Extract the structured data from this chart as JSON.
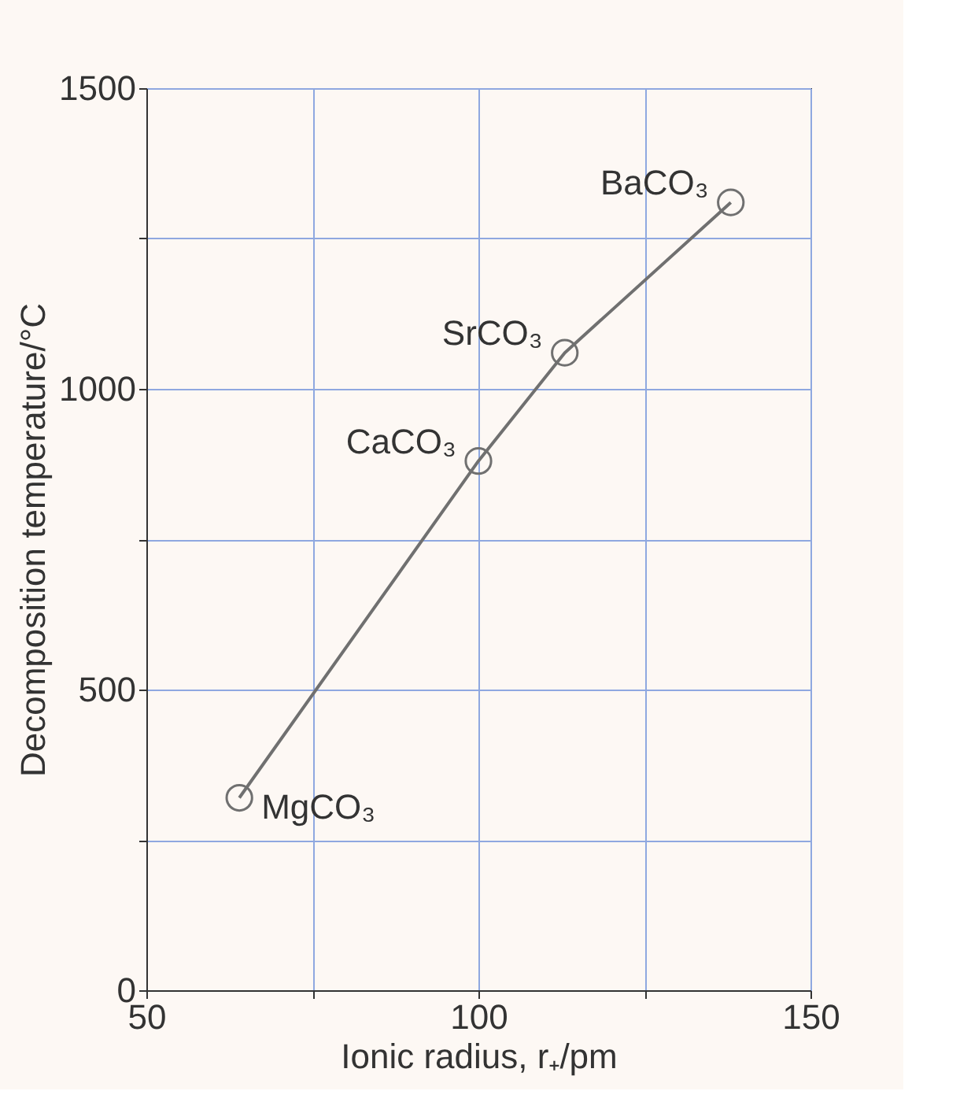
{
  "chart_data": {
    "type": "line",
    "xlabel": "Ionic radius, r₊/pm",
    "ylabel": "Decomposition temperature/°C",
    "x": [
      64,
      100,
      113,
      138
    ],
    "series": [
      {
        "color": "#707070",
        "values": [
          320,
          880,
          1060,
          1310
        ]
      }
    ],
    "marker": "circle",
    "line_style": "solid",
    "grid": true,
    "xlim": [
      50,
      150
    ],
    "xticks": [
      50,
      {
        "value": 75,
        "label": null
      },
      100,
      {
        "value": 125,
        "label": null
      },
      150
    ],
    "ylim": [
      0,
      1500
    ],
    "yticks": [
      0,
      {
        "value": 250,
        "label": null
      },
      500,
      {
        "value": 750,
        "label": null
      },
      1000,
      {
        "value": 1250,
        "label": null
      },
      1500
    ],
    "annotations": [
      {
        "text": "MgCO₃",
        "x": 64,
        "y": 320
      },
      {
        "text": "CaCO₃",
        "x": 100,
        "y": 880
      },
      {
        "text": "SrCO₃",
        "x": 113,
        "y": 1060
      },
      {
        "text": "BaCO₃",
        "x": 138,
        "y": 1310
      }
    ]
  }
}
